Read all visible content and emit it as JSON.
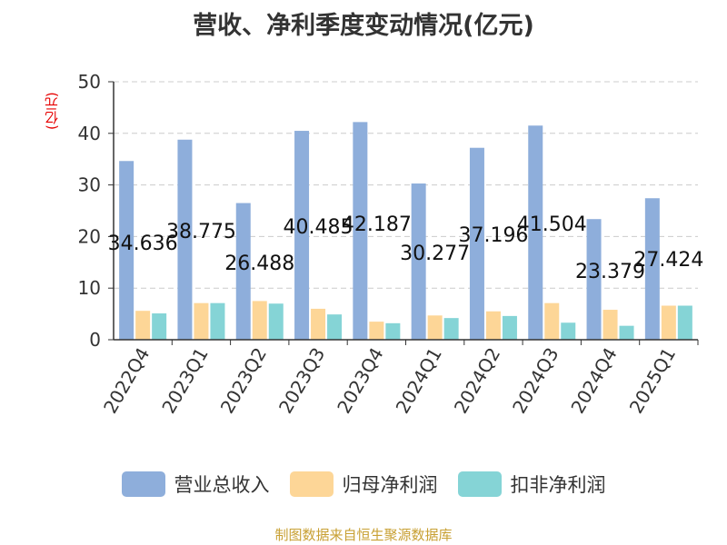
{
  "chart_data": {
    "type": "bar",
    "title": "营收、净利季度变动情况(亿元)",
    "ylabel": "(亿元)",
    "xlabel": "",
    "ylim": [
      0,
      50
    ],
    "yticks": [
      0,
      10,
      20,
      30,
      40,
      50
    ],
    "grid": true,
    "legend_position": "bottom",
    "categories": [
      "2022Q4",
      "2023Q1",
      "2023Q2",
      "2023Q3",
      "2023Q4",
      "2024Q1",
      "2024Q2",
      "2024Q3",
      "2024Q4",
      "2025Q1"
    ],
    "series": [
      {
        "name": "营业总收入",
        "color": "#8eaedb",
        "values": [
          34.636,
          38.775,
          26.488,
          40.485,
          42.187,
          30.277,
          37.196,
          41.504,
          23.379,
          27.424
        ]
      },
      {
        "name": "归母净利润",
        "color": "#fdd697",
        "values": [
          5.6,
          7.1,
          7.5,
          6.0,
          3.5,
          4.7,
          5.5,
          7.1,
          5.8,
          6.6
        ]
      },
      {
        "name": "扣非净利润",
        "color": "#85d4d6",
        "values": [
          5.1,
          7.1,
          7.0,
          4.9,
          3.2,
          4.2,
          4.6,
          3.3,
          2.7,
          6.6
        ]
      }
    ],
    "data_labels": [
      "34.636",
      "38.775",
      "26.488",
      "40.485",
      "42.187",
      "30.277",
      "37.196",
      "41.504",
      "23.379",
      "27.424"
    ]
  },
  "footer": {
    "source": "制图数据来自恒生聚源数据库"
  }
}
